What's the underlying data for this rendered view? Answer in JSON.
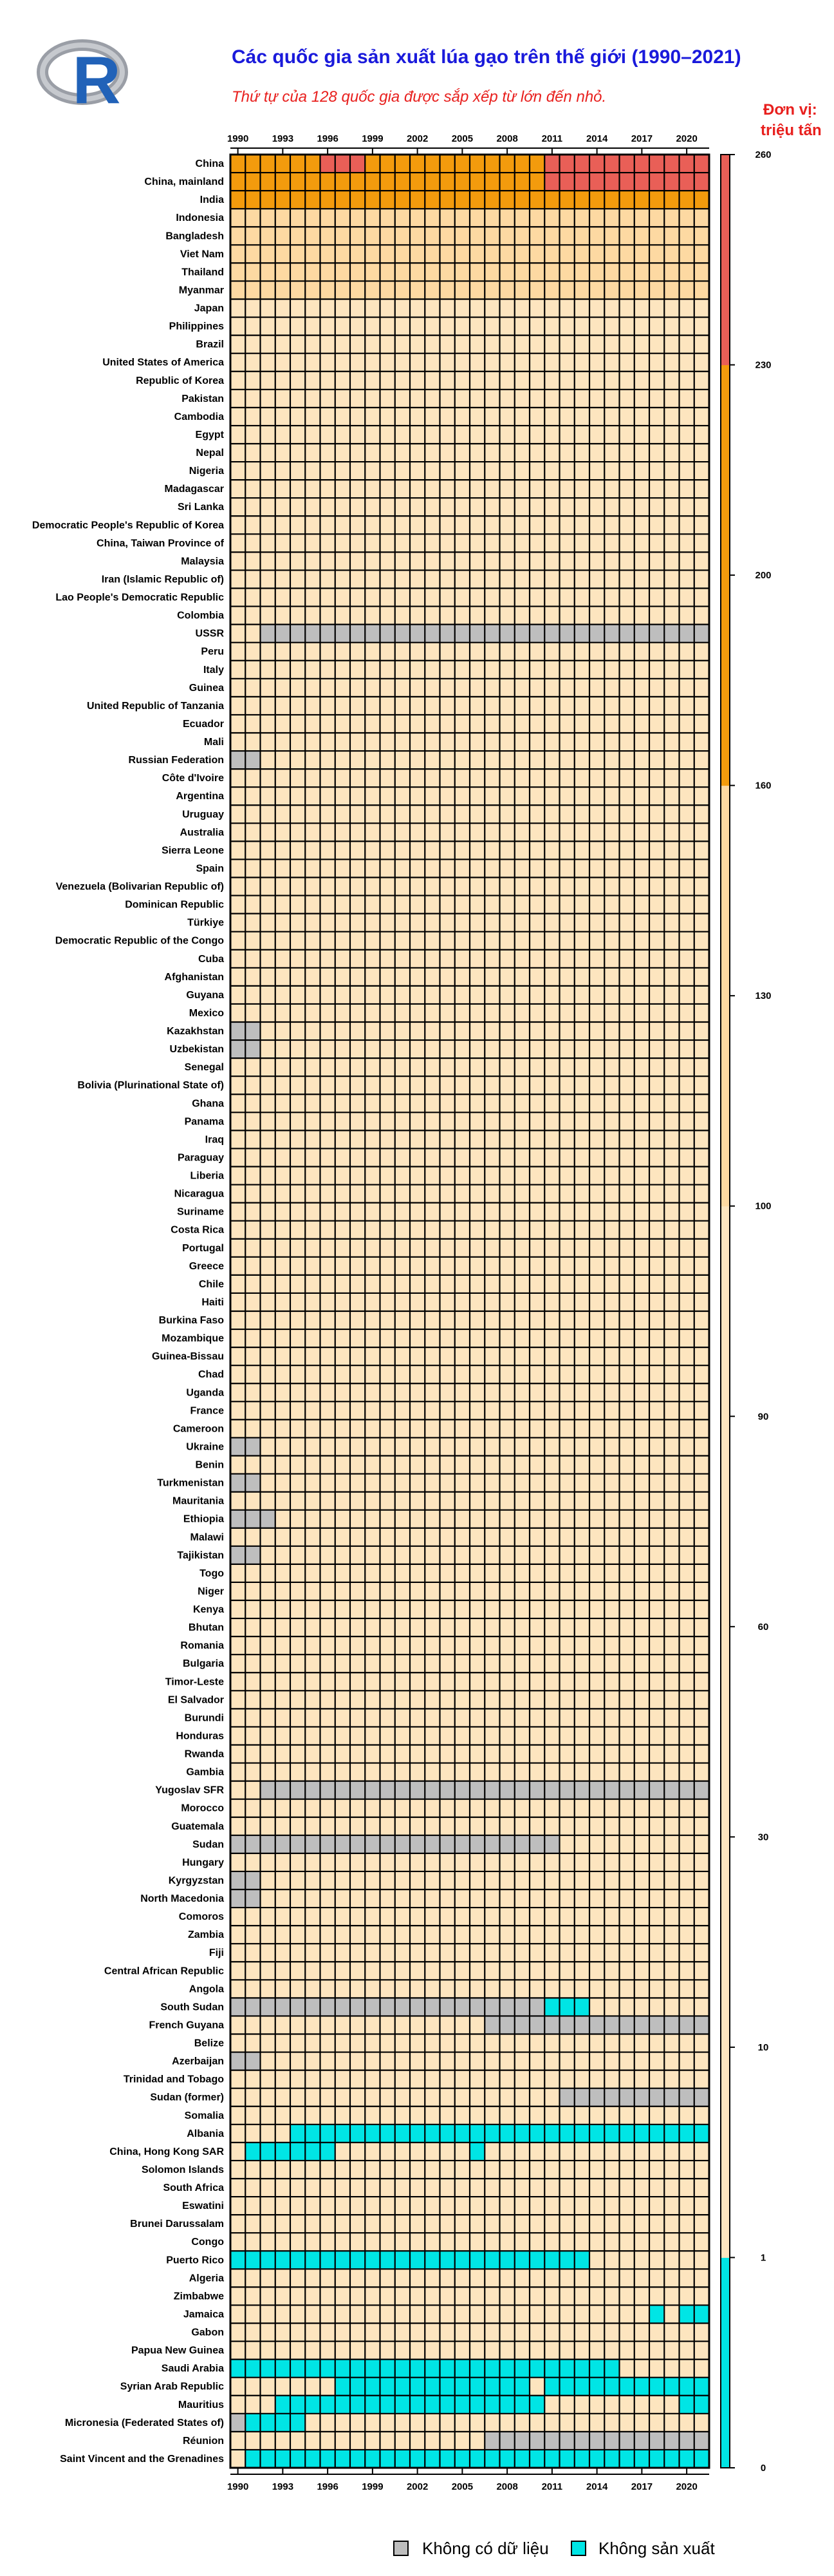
{
  "chart_data": {
    "type": "heatmap",
    "title": "Các quốc gia sản xuất lúa gạo trên thế giới (1990–2021)",
    "subtitle": "Thứ tự của 128 quốc gia được sắp xếp từ lớn đến nhỏ.",
    "unit_label": [
      "Đơn vị:",
      "triệu tấn"
    ],
    "x_tick_labels": [
      "1990",
      "1993",
      "1996",
      "1999",
      "2002",
      "2005",
      "2008",
      "2011",
      "2014",
      "2017",
      "2020"
    ],
    "year_start": 1990,
    "year_end": 2021,
    "colorbar_ticks": [
      "0",
      "1",
      "10",
      "30",
      "60",
      "90",
      "100",
      "130",
      "160",
      "200",
      "230",
      "260"
    ],
    "colorbar_breaks": [
      0,
      1,
      10,
      30,
      60,
      90,
      100,
      130,
      160,
      200,
      230,
      260
    ],
    "colors": {
      "zero": "#00e5e5",
      "no_data": "#bebebe",
      "base": "#fde5bf",
      "light": "#fdd9a2",
      "orange": "#f39b0d",
      "red": "#e95f57",
      "grid": "#000000"
    },
    "legend": {
      "no_data_label": "Không có dữ liệu",
      "zero_label": "Không sản xuất"
    },
    "logo_text": "R",
    "countries": [
      {
        "name": "China",
        "level": "orange",
        "red": [
          [
            1996,
            1998
          ],
          [
            2011,
            2021
          ]
        ]
      },
      {
        "name": "China, mainland",
        "level": "orange",
        "red": [
          [
            2011,
            2021
          ]
        ]
      },
      {
        "name": "India",
        "level": "orange"
      },
      {
        "name": "Indonesia",
        "level": "light"
      },
      {
        "name": "Bangladesh",
        "level": "light"
      },
      {
        "name": "Viet Nam",
        "level": "light"
      },
      {
        "name": "Thailand",
        "level": "light"
      },
      {
        "name": "Myanmar",
        "level": "light"
      },
      {
        "name": "Japan"
      },
      {
        "name": "Philippines"
      },
      {
        "name": "Brazil"
      },
      {
        "name": "United States of America"
      },
      {
        "name": "Republic of Korea"
      },
      {
        "name": "Pakistan"
      },
      {
        "name": "Cambodia"
      },
      {
        "name": "Egypt"
      },
      {
        "name": "Nepal"
      },
      {
        "name": "Nigeria"
      },
      {
        "name": "Madagascar"
      },
      {
        "name": "Sri Lanka"
      },
      {
        "name": "Democratic People's Republic of Korea"
      },
      {
        "name": "China, Taiwan Province of"
      },
      {
        "name": "Malaysia"
      },
      {
        "name": "Iran (Islamic Republic of)"
      },
      {
        "name": "Lao People's Democratic Republic"
      },
      {
        "name": "Colombia"
      },
      {
        "name": "USSR",
        "na": [
          [
            1992,
            2021
          ]
        ]
      },
      {
        "name": "Peru"
      },
      {
        "name": "Italy"
      },
      {
        "name": "Guinea"
      },
      {
        "name": "United Republic of Tanzania"
      },
      {
        "name": "Ecuador"
      },
      {
        "name": "Mali"
      },
      {
        "name": "Russian Federation",
        "na": [
          [
            1990,
            1991
          ]
        ]
      },
      {
        "name": "Côte d'Ivoire"
      },
      {
        "name": "Argentina"
      },
      {
        "name": "Uruguay"
      },
      {
        "name": "Australia"
      },
      {
        "name": "Sierra Leone"
      },
      {
        "name": "Spain"
      },
      {
        "name": "Venezuela (Bolivarian Republic of)"
      },
      {
        "name": "Dominican Republic"
      },
      {
        "name": "Türkiye"
      },
      {
        "name": "Democratic Republic of the Congo"
      },
      {
        "name": "Cuba"
      },
      {
        "name": "Afghanistan"
      },
      {
        "name": "Guyana"
      },
      {
        "name": "Mexico"
      },
      {
        "name": "Kazakhstan",
        "na": [
          [
            1990,
            1991
          ]
        ]
      },
      {
        "name": "Uzbekistan",
        "na": [
          [
            1990,
            1991
          ]
        ]
      },
      {
        "name": "Senegal"
      },
      {
        "name": "Bolivia (Plurinational State of)"
      },
      {
        "name": "Ghana"
      },
      {
        "name": "Panama"
      },
      {
        "name": "Iraq"
      },
      {
        "name": "Paraguay"
      },
      {
        "name": "Liberia"
      },
      {
        "name": "Nicaragua"
      },
      {
        "name": "Suriname"
      },
      {
        "name": "Costa Rica"
      },
      {
        "name": "Portugal"
      },
      {
        "name": "Greece"
      },
      {
        "name": "Chile"
      },
      {
        "name": "Haiti"
      },
      {
        "name": "Burkina Faso"
      },
      {
        "name": "Mozambique"
      },
      {
        "name": "Guinea-Bissau"
      },
      {
        "name": "Chad"
      },
      {
        "name": "Uganda"
      },
      {
        "name": "France"
      },
      {
        "name": "Cameroon"
      },
      {
        "name": "Ukraine",
        "na": [
          [
            1990,
            1991
          ]
        ]
      },
      {
        "name": "Benin"
      },
      {
        "name": "Turkmenistan",
        "na": [
          [
            1990,
            1991
          ]
        ]
      },
      {
        "name": "Mauritania"
      },
      {
        "name": "Ethiopia",
        "na": [
          [
            1990,
            1992
          ]
        ]
      },
      {
        "name": "Malawi"
      },
      {
        "name": "Tajikistan",
        "na": [
          [
            1990,
            1991
          ]
        ]
      },
      {
        "name": "Togo"
      },
      {
        "name": "Niger"
      },
      {
        "name": "Kenya"
      },
      {
        "name": "Bhutan"
      },
      {
        "name": "Romania"
      },
      {
        "name": "Bulgaria"
      },
      {
        "name": "Timor-Leste"
      },
      {
        "name": "El Salvador"
      },
      {
        "name": "Burundi"
      },
      {
        "name": "Honduras"
      },
      {
        "name": "Rwanda"
      },
      {
        "name": "Gambia"
      },
      {
        "name": "Yugoslav SFR",
        "na": [
          [
            1992,
            2021
          ]
        ]
      },
      {
        "name": "Morocco"
      },
      {
        "name": "Guatemala"
      },
      {
        "name": "Sudan",
        "na": [
          [
            1990,
            2011
          ]
        ]
      },
      {
        "name": "Hungary"
      },
      {
        "name": "Kyrgyzstan",
        "na": [
          [
            1990,
            1991
          ]
        ]
      },
      {
        "name": "North Macedonia",
        "na": [
          [
            1990,
            1991
          ]
        ]
      },
      {
        "name": "Comoros"
      },
      {
        "name": "Zambia"
      },
      {
        "name": "Fiji"
      },
      {
        "name": "Central African Republic"
      },
      {
        "name": "Angola"
      },
      {
        "name": "South Sudan",
        "na": [
          [
            1990,
            2010
          ]
        ],
        "zero": [
          [
            2011,
            2013
          ]
        ]
      },
      {
        "name": "French Guyana",
        "na": [
          [
            2007,
            2021
          ]
        ]
      },
      {
        "name": "Belize"
      },
      {
        "name": "Azerbaijan",
        "na": [
          [
            1990,
            1991
          ]
        ]
      },
      {
        "name": "Trinidad and Tobago"
      },
      {
        "name": "Sudan (former)",
        "na": [
          [
            2012,
            2021
          ]
        ]
      },
      {
        "name": "Somalia"
      },
      {
        "name": "Albania",
        "zero": [
          [
            1994,
            2021
          ]
        ]
      },
      {
        "name": "China, Hong Kong SAR",
        "zero": [
          [
            1991,
            1996
          ],
          [
            2006,
            2006
          ]
        ]
      },
      {
        "name": "Solomon Islands"
      },
      {
        "name": "South Africa"
      },
      {
        "name": "Eswatini"
      },
      {
        "name": "Brunei Darussalam"
      },
      {
        "name": "Congo"
      },
      {
        "name": "Puerto Rico",
        "zero": [
          [
            1990,
            2013
          ]
        ]
      },
      {
        "name": "Algeria"
      },
      {
        "name": "Zimbabwe"
      },
      {
        "name": "Jamaica",
        "zero": [
          [
            2018,
            2018
          ],
          [
            2020,
            2021
          ]
        ]
      },
      {
        "name": "Gabon"
      },
      {
        "name": "Papua New Guinea"
      },
      {
        "name": "Saudi Arabia",
        "zero": [
          [
            1990,
            2015
          ]
        ]
      },
      {
        "name": "Syrian Arab Republic",
        "zero": [
          [
            1997,
            2009
          ],
          [
            2011,
            2021
          ]
        ]
      },
      {
        "name": "Mauritius",
        "zero": [
          [
            1993,
            2010
          ],
          [
            2020,
            2021
          ]
        ]
      },
      {
        "name": "Micronesia (Federated States of)",
        "na": [
          [
            1990,
            1990
          ]
        ],
        "zero": [
          [
            1991,
            1994
          ]
        ]
      },
      {
        "name": "Réunion",
        "na": [
          [
            2007,
            2021
          ]
        ]
      },
      {
        "name": "Saint Vincent and the Grenadines",
        "zero": [
          [
            1991,
            2021
          ]
        ]
      }
    ]
  }
}
